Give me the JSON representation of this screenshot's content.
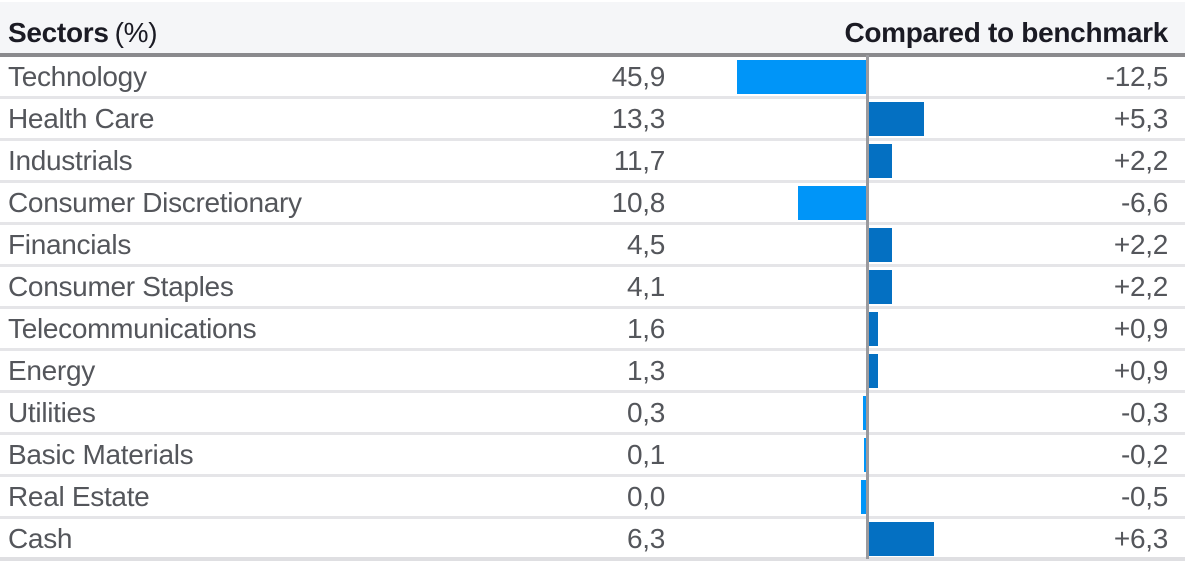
{
  "header": {
    "left_title": "Sectors",
    "left_unit": "(%)",
    "right_title": "Compared to benchmark"
  },
  "rows": [
    {
      "sector": "Technology",
      "weight": "45,9",
      "benchmark": "-12,5",
      "benchmark_value": -12.5
    },
    {
      "sector": "Health Care",
      "weight": "13,3",
      "benchmark": "+5,3",
      "benchmark_value": 5.3
    },
    {
      "sector": "Industrials",
      "weight": "11,7",
      "benchmark": "+2,2",
      "benchmark_value": 2.2
    },
    {
      "sector": "Consumer Discretionary",
      "weight": "10,8",
      "benchmark": "-6,6",
      "benchmark_value": -6.6
    },
    {
      "sector": "Financials",
      "weight": "4,5",
      "benchmark": "+2,2",
      "benchmark_value": 2.2
    },
    {
      "sector": "Consumer Staples",
      "weight": "4,1",
      "benchmark": "+2,2",
      "benchmark_value": 2.2
    },
    {
      "sector": "Telecommunications",
      "weight": "1,6",
      "benchmark": "+0,9",
      "benchmark_value": 0.9
    },
    {
      "sector": "Energy",
      "weight": "1,3",
      "benchmark": "+0,9",
      "benchmark_value": 0.9
    },
    {
      "sector": "Utilities",
      "weight": "0,3",
      "benchmark": "-0,3",
      "benchmark_value": -0.3
    },
    {
      "sector": "Basic Materials",
      "weight": "0,1",
      "benchmark": "-0,2",
      "benchmark_value": -0.2
    },
    {
      "sector": "Real Estate",
      "weight": "0,0",
      "benchmark": "-0,5",
      "benchmark_value": -0.5
    },
    {
      "sector": "Cash",
      "weight": "6,3",
      "benchmark": "+6,3",
      "benchmark_value": 6.3
    }
  ],
  "chart_data": {
    "type": "bar",
    "orientation": "horizontal",
    "title": "Sectors (%)",
    "categories": [
      "Technology",
      "Health Care",
      "Industrials",
      "Consumer Discretionary",
      "Financials",
      "Consumer Staples",
      "Telecommunications",
      "Energy",
      "Utilities",
      "Basic Materials",
      "Real Estate",
      "Cash"
    ],
    "series": [
      {
        "name": "Sectors (%)",
        "values": [
          45.9,
          13.3,
          11.7,
          10.8,
          4.5,
          4.1,
          1.6,
          1.3,
          0.3,
          0.1,
          0.0,
          6.3
        ]
      },
      {
        "name": "Compared to benchmark",
        "values": [
          -12.5,
          5.3,
          2.2,
          -6.6,
          2.2,
          2.2,
          0.9,
          0.9,
          -0.3,
          -0.2,
          -0.5,
          6.3
        ]
      }
    ],
    "xlabel": "",
    "ylabel": "",
    "xlim": [
      -13,
      7
    ],
    "grid": false,
    "legend_position": "none",
    "decimal_separator": ",",
    "notes": "Weights shown as text column; only the benchmark-difference series is rendered as bars. Negative bars (light blue) extend left of the gray center axis, positive bars (dark blue) extend right."
  },
  "colors": {
    "negative_bar": "#0095F8",
    "positive_bar": "#0470C2",
    "axis_line": "#9A9A9E",
    "header_underline": "#8A8A8D",
    "row_separator": "#E5E5E8",
    "bottom_border": "#DFDFE2",
    "header_background": "#F5F6F8",
    "header_text": "#1B1B24",
    "row_text": "#54565B"
  }
}
